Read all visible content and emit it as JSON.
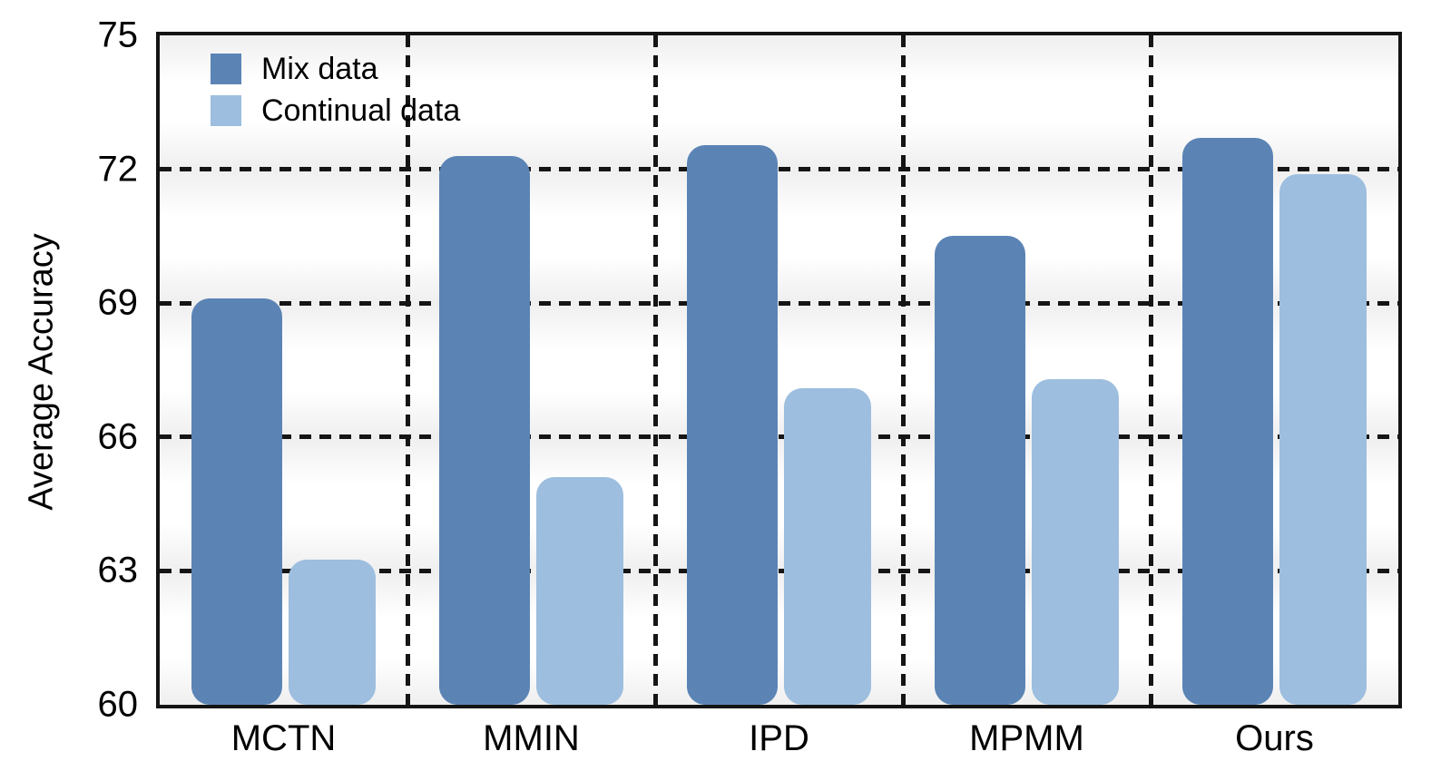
{
  "chart_data": {
    "type": "bar",
    "title": "",
    "xlabel": "",
    "ylabel": "Average Accuracy",
    "categories": [
      "MCTN",
      "MMIN",
      "IPD",
      "MPMM",
      "Ours"
    ],
    "series": [
      {
        "name": "Mix data",
        "color": "#5b84b5",
        "values": [
          69.1,
          72.3,
          72.55,
          70.5,
          72.7
        ]
      },
      {
        "name": "Continual data",
        "color": "#9dbede",
        "values": [
          63.25,
          65.1,
          67.1,
          67.3,
          71.9
        ]
      }
    ],
    "ylim": [
      60,
      75
    ],
    "yticks": [
      60,
      63,
      66,
      69,
      72,
      75
    ],
    "gridlines_y": [
      63,
      66,
      69,
      72
    ],
    "grid_style": "dashed",
    "group_separators": true,
    "legend_position": "top-left",
    "legend_frame": false
  },
  "colors": {
    "axis": "#141414",
    "text": "#000000",
    "band": "#ececec",
    "mix_bar": "#5b84b5",
    "continual_bar": "#9dbede"
  }
}
